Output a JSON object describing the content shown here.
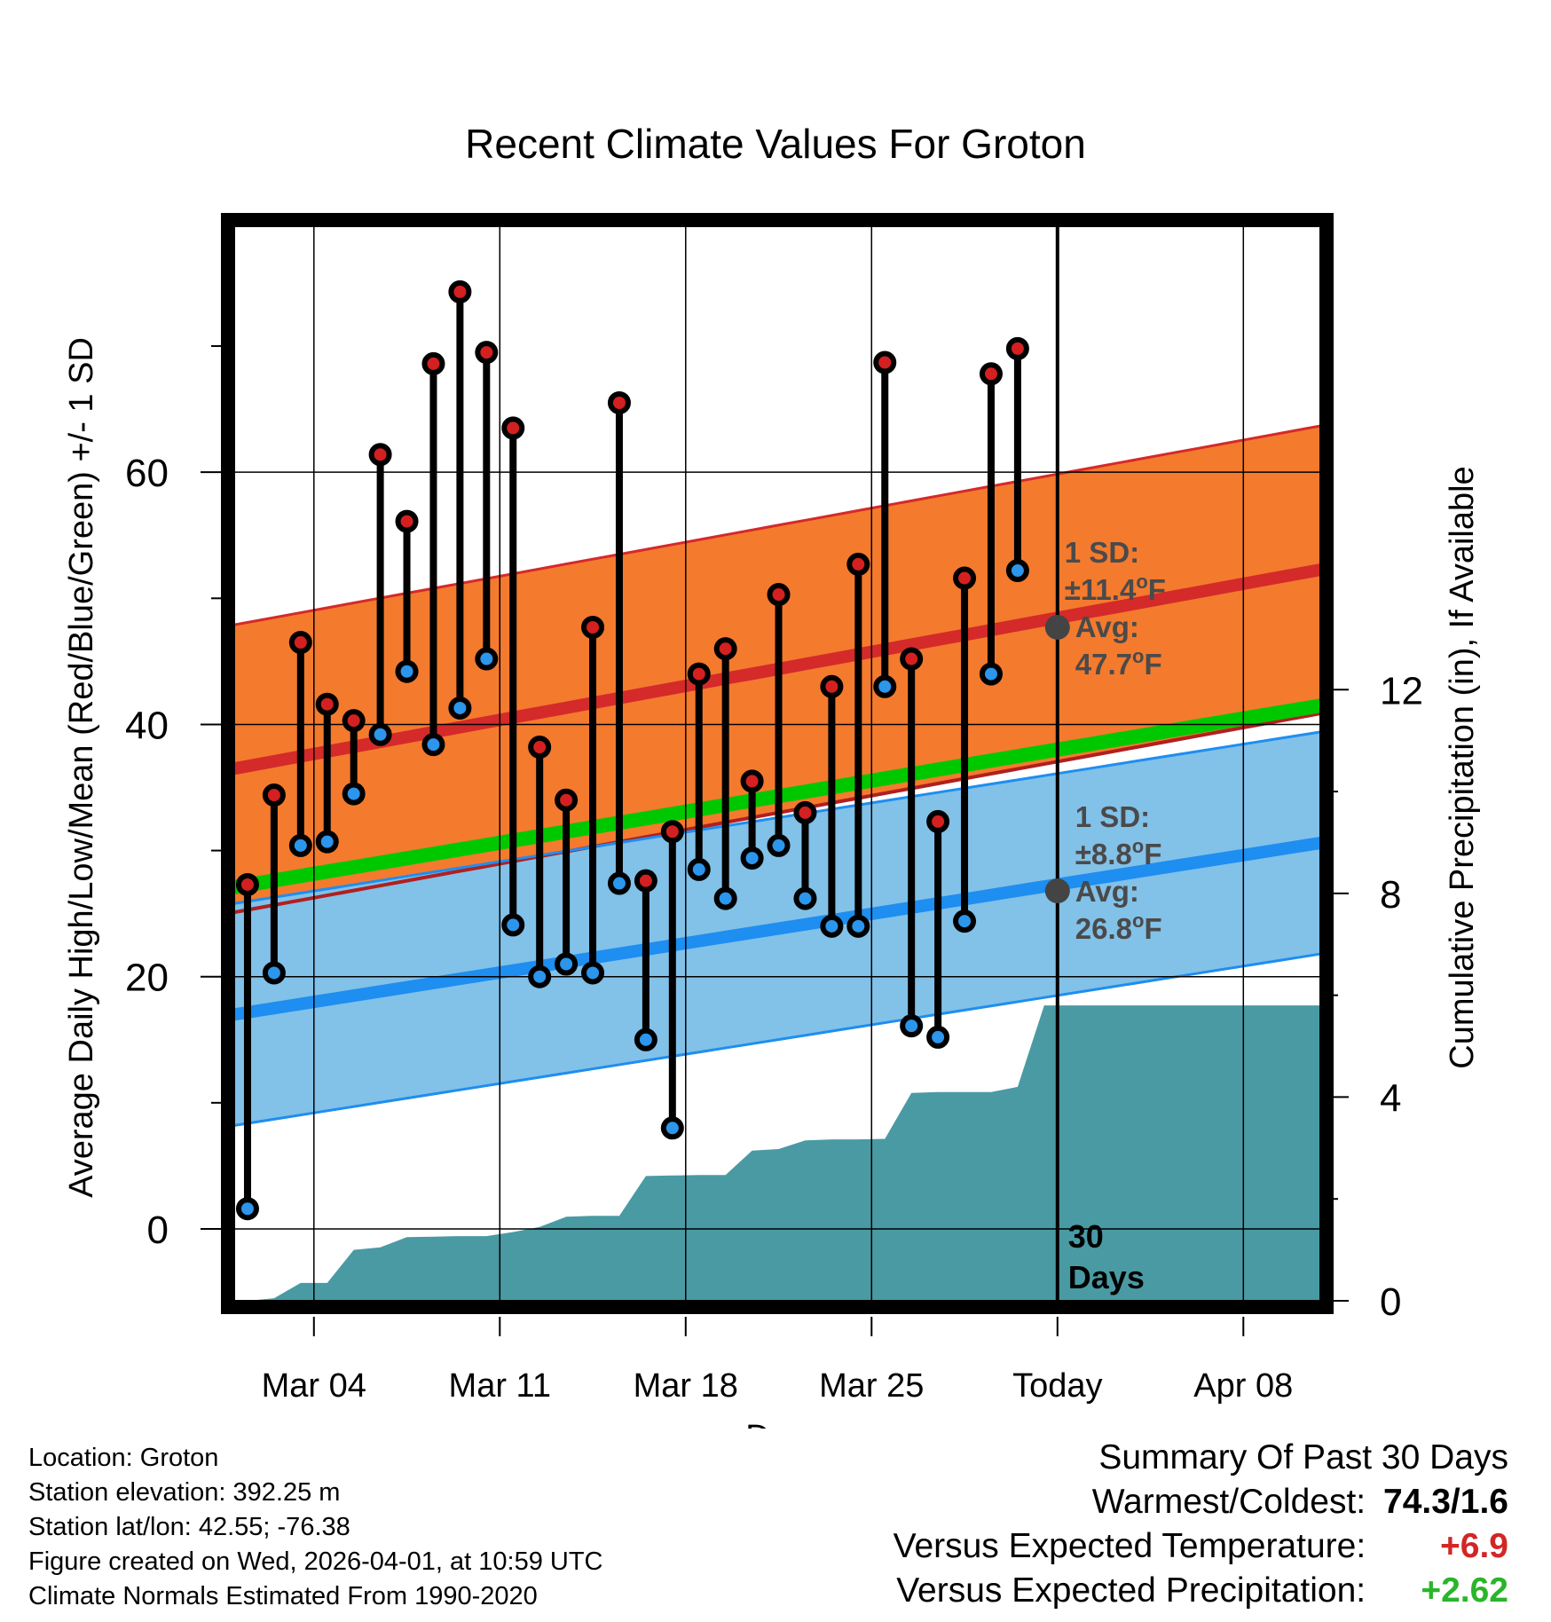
{
  "chart_data": {
    "type": "climate-range",
    "title": "Recent Climate Values For Groton",
    "xlabel": "Day",
    "ylabel": "Average Daily High/Low/Mean (Red/Blue/Green) +/- 1 SD",
    "y2label": "Cumulative Precipitation (in), If Available",
    "ylim": [
      -5.7,
      79.5
    ],
    "y2lim": [
      0,
      21.1
    ],
    "yticks": [
      "0",
      "20",
      "40",
      "60"
    ],
    "y2ticks": [
      "0",
      "4",
      "8",
      "12"
    ],
    "x_range_days": [
      0,
      41.5
    ],
    "xticks": [
      {
        "day": 3,
        "label": "Mar 04"
      },
      {
        "day": 10,
        "label": "Mar 11"
      },
      {
        "day": 17,
        "label": "Mar 18"
      },
      {
        "day": 24,
        "label": "Mar 25"
      },
      {
        "day": 31,
        "label": "Today"
      },
      {
        "day": 38,
        "label": "Apr 08"
      }
    ],
    "today_day": 31,
    "today_label": [
      "30",
      "Days"
    ],
    "highs": [
      27.3,
      34.4,
      46.5,
      41.6,
      40.3,
      61.4,
      56.1,
      68.6,
      74.3,
      69.5,
      63.5,
      38.2,
      34.0,
      47.7,
      65.5,
      27.6,
      31.5,
      44.0,
      46.0,
      35.5,
      50.3,
      33.0,
      43.0,
      52.7,
      68.7,
      45.2,
      32.3,
      51.6,
      67.8,
      69.8
    ],
    "lows": [
      1.6,
      20.3,
      30.4,
      30.7,
      34.5,
      39.2,
      44.2,
      38.4,
      41.3,
      45.2,
      24.1,
      20.0,
      21.0,
      20.3,
      27.4,
      15.0,
      8.0,
      28.5,
      26.2,
      29.4,
      30.4,
      26.2,
      24.0,
      24.0,
      43.0,
      16.1,
      15.2,
      24.4,
      44.0,
      52.2
    ],
    "normal_high": {
      "start": 36.5,
      "end": 52.5,
      "sd": 11.4
    },
    "normal_low": {
      "start": 17.0,
      "end": 30.8,
      "sd": 8.8
    },
    "normal_mean": {
      "start": 27.1,
      "end": 41.7
    },
    "precip_cumulative": [
      0,
      0.05,
      0.35,
      0.35,
      1.0,
      1.05,
      1.25,
      1.26,
      1.27,
      1.27,
      1.35,
      1.45,
      1.65,
      1.67,
      1.67,
      2.45,
      2.46,
      2.47,
      2.47,
      2.95,
      2.98,
      3.15,
      3.17,
      3.17,
      3.18,
      4.08,
      4.1,
      4.1,
      4.1,
      4.2,
      5.8,
      5.8
    ],
    "annotations": {
      "high_sd": "±11.4",
      "high_avg": "47.7",
      "low_sd": "±8.8",
      "low_avg": "26.8",
      "sd_label": "1 SD:",
      "avg_label": "Avg:",
      "unit": "F",
      "degree": "o"
    },
    "colors": {
      "high_band": "#f47a2e",
      "high_line": "#d42a2a",
      "low_band": "#82c1e8",
      "low_line": "#1e8ef0",
      "mean_line": "#00c800",
      "precip": "#4a9aa4",
      "high_dot": "#d42020",
      "low_dot": "#2c95ec",
      "avg_dot": "#444444",
      "annot_text": "#4a4a4a"
    }
  },
  "info": {
    "location": "Location: Groton",
    "elevation": "Station elevation: 392.25 m",
    "latlon": "Station lat/lon: 42.55; -76.38",
    "created": "Figure created on Wed, 2026-04-01, at 10:59 UTC",
    "normals": "Climate Normals Estimated From 1990-2020"
  },
  "summary": {
    "title": "Summary Of Past 30 Days",
    "warm_cold_label": "Warmest/Coldest:",
    "warm_cold_value": "74.3/1.6",
    "temp_label": "Versus Expected Temperature:",
    "temp_value": "+6.9",
    "temp_color": "#d32626",
    "precip_label": "Versus Expected Precipitation:",
    "precip_value": "+2.62",
    "precip_color": "#2ab52a"
  }
}
